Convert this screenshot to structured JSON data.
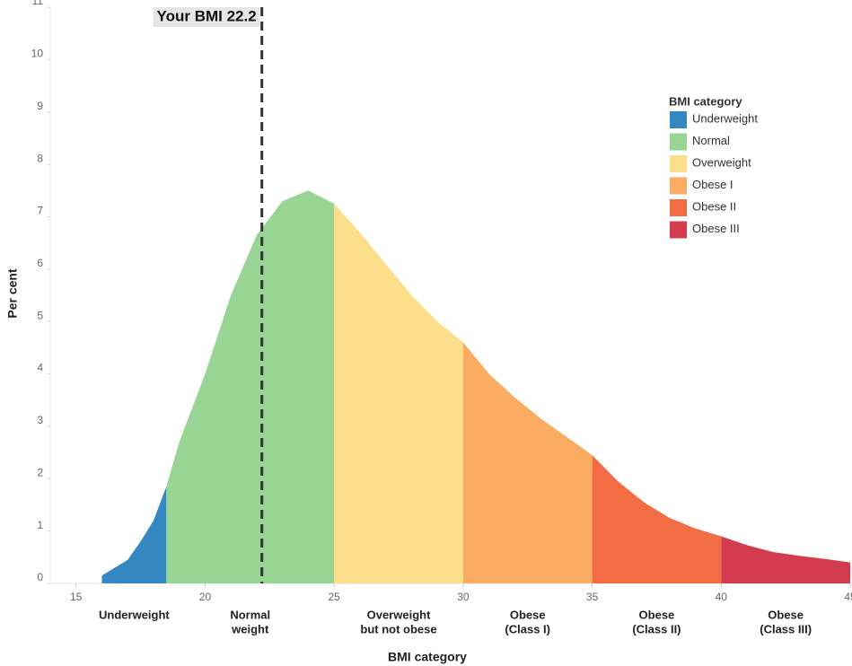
{
  "chart_data": {
    "type": "area",
    "x_label": "BMI category",
    "y_label": "Per cent",
    "xlim": [
      14,
      45
    ],
    "ylim": [
      0,
      11
    ],
    "xticks": [
      15,
      20,
      25,
      30,
      35,
      40,
      45
    ],
    "yticks": [
      0,
      1,
      2,
      3,
      4,
      5,
      6,
      7,
      8,
      9,
      10,
      11
    ],
    "legend_title": "BMI category",
    "legend_position": "upper right",
    "marker": {
      "value": 22.2,
      "label": "Your BMI 22.2"
    },
    "series": [
      {
        "name": "Underweight",
        "color": "#3487c0",
        "label": [
          "Underweight"
        ],
        "x": [
          16,
          17,
          17.5,
          18,
          18.5
        ],
        "values": [
          0.15,
          0.45,
          0.8,
          1.2,
          1.85
        ]
      },
      {
        "name": "Normal",
        "color": "#98d594",
        "label": [
          "Normal",
          "weight"
        ],
        "x": [
          18.5,
          19,
          20,
          21,
          22,
          23,
          24,
          25
        ],
        "values": [
          1.85,
          2.7,
          4.0,
          5.5,
          6.65,
          7.3,
          7.5,
          7.25
        ]
      },
      {
        "name": "Overweight",
        "color": "#fdde8a",
        "label": [
          "Overweight",
          "but not obese"
        ],
        "x": [
          25,
          26,
          27,
          28,
          29,
          30
        ],
        "values": [
          7.25,
          6.7,
          6.1,
          5.5,
          5.0,
          4.6
        ]
      },
      {
        "name": "Obese I",
        "color": "#fbac63",
        "label": [
          "Obese",
          "(Class I)"
        ],
        "x": [
          30,
          31,
          32,
          33,
          34,
          35
        ],
        "values": [
          4.6,
          4.0,
          3.55,
          3.15,
          2.8,
          2.45
        ]
      },
      {
        "name": "Obese II",
        "color": "#f26d44",
        "label": [
          "Obese",
          "(Class II)"
        ],
        "x": [
          35,
          36,
          37,
          38,
          39,
          40
        ],
        "values": [
          2.45,
          1.95,
          1.55,
          1.25,
          1.05,
          0.9
        ]
      },
      {
        "name": "Obese III",
        "color": "#d33c4e",
        "label": [
          "Obese",
          "(Class III)"
        ],
        "x": [
          40,
          41,
          42,
          43,
          44,
          45
        ],
        "values": [
          0.9,
          0.73,
          0.6,
          0.53,
          0.47,
          0.4
        ]
      }
    ]
  }
}
